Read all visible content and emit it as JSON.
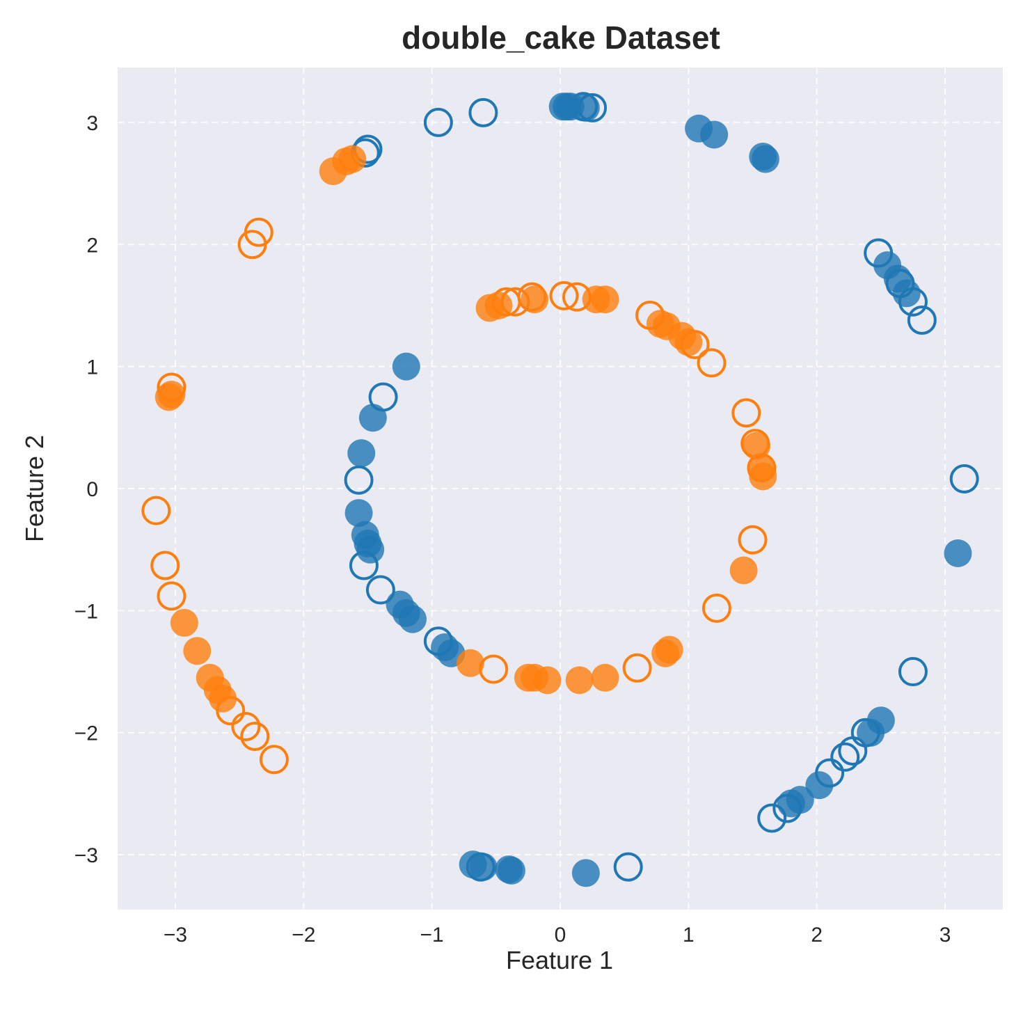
{
  "chart_data": {
    "type": "scatter",
    "title": "double_cake Dataset",
    "xlabel": "Feature 1",
    "ylabel": "Feature 2",
    "xlim": [
      -3.45,
      3.45
    ],
    "ylim": [
      -3.45,
      3.45
    ],
    "xticks": [
      -3,
      -2,
      -1,
      0,
      1,
      2,
      3
    ],
    "yticks": [
      -3,
      -2,
      -1,
      0,
      1,
      2,
      3
    ],
    "xtick_labels": [
      "−3",
      "−2",
      "−1",
      "0",
      "1",
      "2",
      "3"
    ],
    "ytick_labels": [
      "−3",
      "−2",
      "−1",
      "0",
      "1",
      "2",
      "3"
    ],
    "grid": true,
    "grid_style": "dashed",
    "background": "#eaeaf2",
    "colors": {
      "class_blue": "#1f77b4",
      "class_orange": "#ff7f0e"
    },
    "series": [
      {
        "color": "#1f77b4",
        "marker": "filled",
        "points": [
          [
            0.02,
            3.13
          ],
          [
            0.05,
            3.13
          ],
          [
            0.08,
            3.13
          ],
          [
            0.2,
            3.12
          ],
          [
            1.08,
            2.95
          ],
          [
            1.2,
            2.9
          ],
          [
            1.58,
            2.72
          ],
          [
            1.6,
            2.7
          ],
          [
            2.55,
            1.83
          ],
          [
            2.63,
            1.72
          ],
          [
            2.7,
            1.6
          ],
          [
            3.1,
            -0.53
          ],
          [
            2.5,
            -1.9
          ],
          [
            2.42,
            -2.0
          ],
          [
            2.02,
            -2.43
          ],
          [
            1.87,
            -2.55
          ],
          [
            1.8,
            -2.58
          ],
          [
            0.2,
            -3.15
          ],
          [
            -0.4,
            -3.12
          ],
          [
            -0.38,
            -3.13
          ],
          [
            -0.6,
            -3.1
          ],
          [
            -0.68,
            -3.08
          ],
          [
            -1.2,
            1.0
          ],
          [
            -1.46,
            0.58
          ],
          [
            -1.55,
            0.29
          ],
          [
            -1.57,
            -0.2
          ],
          [
            -1.52,
            -0.38
          ],
          [
            -1.5,
            -0.45
          ],
          [
            -1.48,
            -0.5
          ],
          [
            -1.25,
            -0.95
          ],
          [
            -1.2,
            -1.02
          ],
          [
            -1.15,
            -1.07
          ],
          [
            -0.9,
            -1.3
          ],
          [
            -0.85,
            -1.35
          ]
        ]
      },
      {
        "color": "#1f77b4",
        "marker": "hollow",
        "points": [
          [
            -0.95,
            3.0
          ],
          [
            -0.6,
            3.08
          ],
          [
            0.25,
            3.12
          ],
          [
            0.18,
            3.13
          ],
          [
            -1.5,
            2.78
          ],
          [
            -1.52,
            2.75
          ],
          [
            2.48,
            1.93
          ],
          [
            2.65,
            1.68
          ],
          [
            2.75,
            1.53
          ],
          [
            2.82,
            1.38
          ],
          [
            3.15,
            0.08
          ],
          [
            2.75,
            -1.5
          ],
          [
            2.38,
            -2.0
          ],
          [
            2.28,
            -2.15
          ],
          [
            2.22,
            -2.2
          ],
          [
            2.1,
            -2.33
          ],
          [
            1.77,
            -2.62
          ],
          [
            1.65,
            -2.7
          ],
          [
            0.53,
            -3.1
          ],
          [
            -0.62,
            -3.1
          ],
          [
            -1.38,
            0.75
          ],
          [
            -1.57,
            0.07
          ],
          [
            -1.53,
            -0.63
          ],
          [
            -1.4,
            -0.83
          ],
          [
            -0.95,
            -1.25
          ]
        ]
      },
      {
        "color": "#ff7f0e",
        "marker": "filled",
        "points": [
          [
            -1.77,
            2.6
          ],
          [
            -1.67,
            2.68
          ],
          [
            -1.62,
            2.7
          ],
          [
            -3.05,
            0.75
          ],
          [
            -3.03,
            0.77
          ],
          [
            -2.93,
            -1.1
          ],
          [
            -2.83,
            -1.33
          ],
          [
            -2.73,
            -1.55
          ],
          [
            -2.67,
            -1.65
          ],
          [
            -2.63,
            -1.72
          ],
          [
            -0.55,
            1.48
          ],
          [
            -0.48,
            1.5
          ],
          [
            -0.2,
            1.55
          ],
          [
            0.28,
            1.55
          ],
          [
            0.35,
            1.55
          ],
          [
            0.78,
            1.35
          ],
          [
            0.83,
            1.33
          ],
          [
            0.95,
            1.25
          ],
          [
            1.0,
            1.2
          ],
          [
            1.53,
            0.35
          ],
          [
            1.57,
            0.17
          ],
          [
            1.58,
            0.1
          ],
          [
            1.43,
            -0.67
          ],
          [
            0.85,
            -1.32
          ],
          [
            0.82,
            -1.35
          ],
          [
            -0.7,
            -1.43
          ],
          [
            -0.25,
            -1.55
          ],
          [
            -0.2,
            -1.55
          ],
          [
            -0.1,
            -1.57
          ],
          [
            0.15,
            -1.57
          ],
          [
            0.35,
            -1.55
          ]
        ]
      },
      {
        "color": "#ff7f0e",
        "marker": "hollow",
        "points": [
          [
            -2.35,
            2.1
          ],
          [
            -2.4,
            2.0
          ],
          [
            -3.03,
            0.83
          ],
          [
            -3.15,
            -0.18
          ],
          [
            -3.08,
            -0.63
          ],
          [
            -3.03,
            -0.88
          ],
          [
            -2.57,
            -1.82
          ],
          [
            -2.45,
            -1.95
          ],
          [
            -2.38,
            -2.03
          ],
          [
            -2.23,
            -2.22
          ],
          [
            -0.42,
            1.53
          ],
          [
            -0.35,
            1.53
          ],
          [
            -0.22,
            1.57
          ],
          [
            0.03,
            1.58
          ],
          [
            0.13,
            1.57
          ],
          [
            0.7,
            1.42
          ],
          [
            1.05,
            1.18
          ],
          [
            1.18,
            1.03
          ],
          [
            1.45,
            0.62
          ],
          [
            1.52,
            0.37
          ],
          [
            1.57,
            0.17
          ],
          [
            1.5,
            -0.42
          ],
          [
            1.22,
            -0.98
          ],
          [
            0.6,
            -1.47
          ],
          [
            -0.52,
            -1.48
          ]
        ]
      }
    ]
  }
}
